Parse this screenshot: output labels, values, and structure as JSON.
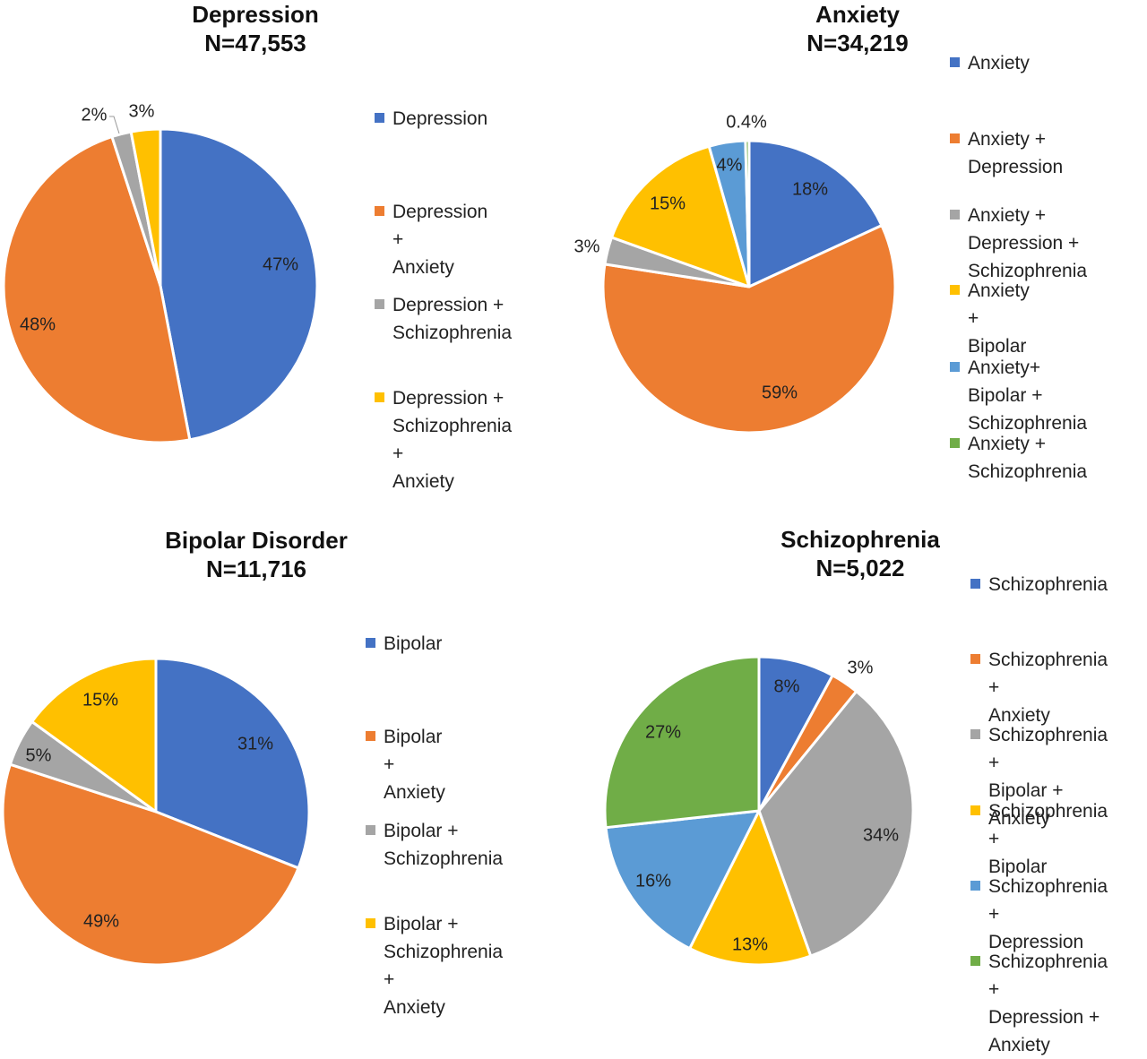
{
  "colors": {
    "blue": "#4472C4",
    "orange": "#ED7D31",
    "gray": "#A5A5A5",
    "yellow": "#FFC000",
    "lightblue": "#5B9BD5",
    "green": "#70AD47"
  },
  "chart_data": [
    {
      "type": "pie",
      "title": "Depression",
      "subtitle": "N=47,553",
      "legend_position": "right",
      "slices": [
        {
          "label": "Depression",
          "value": 47,
          "data_label": "47%",
          "color": "#4472C4"
        },
        {
          "label": "Depression + Anxiety",
          "value": 48,
          "data_label": "48%",
          "color": "#ED7D31"
        },
        {
          "label": "Depression + Schizophrenia",
          "value": 2,
          "data_label": "2%",
          "color": "#A5A5A5"
        },
        {
          "label": "Depression + Schizophrenia + Anxiety",
          "value": 3,
          "data_label": "3%",
          "color": "#FFC000"
        }
      ],
      "legend_lines": [
        [
          "Depression"
        ],
        [
          "Depression +",
          "Anxiety"
        ],
        [
          "Depression +",
          "Schizophrenia"
        ],
        [
          "Depression +",
          "Schizophrenia +",
          "Anxiety"
        ]
      ]
    },
    {
      "type": "pie",
      "title": "Anxiety",
      "subtitle": "N=34,219",
      "legend_position": "right",
      "slices": [
        {
          "label": "Anxiety",
          "value": 18,
          "data_label": "18%",
          "color": "#4472C4"
        },
        {
          "label": "Anxiety + Depression",
          "value": 59,
          "data_label": "59%",
          "color": "#ED7D31"
        },
        {
          "label": "Anxiety + Depression + Schizophrenia",
          "value": 3,
          "data_label": "3%",
          "color": "#A5A5A5"
        },
        {
          "label": "Anxiety + Bipolar",
          "value": 15,
          "data_label": "15%",
          "color": "#FFC000"
        },
        {
          "label": "Anxiety+ Bipolar + Schizophrenia",
          "value": 4,
          "data_label": "4%",
          "color": "#5B9BD5"
        },
        {
          "label": "Anxiety + Schizophrenia",
          "value": 0.4,
          "data_label": "0.4%",
          "color": "#70AD47"
        }
      ],
      "legend_lines": [
        [
          "Anxiety"
        ],
        [
          "Anxiety +",
          "Depression"
        ],
        [
          "Anxiety +",
          "Depression +",
          "Schizophrenia"
        ],
        [
          "Anxiety + Bipolar"
        ],
        [
          "Anxiety+ Bipolar +",
          "Schizophrenia"
        ],
        [
          "Anxiety +",
          "Schizophrenia"
        ]
      ]
    },
    {
      "type": "pie",
      "title": "Bipolar Disorder",
      "subtitle": "N=11,716",
      "legend_position": "right",
      "slices": [
        {
          "label": "Bipolar",
          "value": 31,
          "data_label": "31%",
          "color": "#4472C4"
        },
        {
          "label": "Bipolar + Anxiety",
          "value": 49,
          "data_label": "49%",
          "color": "#ED7D31"
        },
        {
          "label": "Bipolar + Schizophrenia",
          "value": 5,
          "data_label": "5%",
          "color": "#A5A5A5"
        },
        {
          "label": "Bipolar + Schizophrenia + Anxiety",
          "value": 15,
          "data_label": "15%",
          "color": "#FFC000"
        }
      ],
      "legend_lines": [
        [
          "Bipolar"
        ],
        [
          "Bipolar + Anxiety"
        ],
        [
          "Bipolar +",
          "Schizophrenia"
        ],
        [
          "Bipolar +",
          "Schizophrenia +",
          "Anxiety"
        ]
      ]
    },
    {
      "type": "pie",
      "title": "Schizophrenia",
      "subtitle": "N=5,022",
      "legend_position": "right",
      "slices": [
        {
          "label": "Schizophrenia",
          "value": 8,
          "data_label": "8%",
          "color": "#4472C4"
        },
        {
          "label": "Schizophrenia + Anxiety",
          "value": 3,
          "data_label": "3%",
          "color": "#ED7D31"
        },
        {
          "label": "Schizophrenia + Bipolar + Anxiety",
          "value": 34,
          "data_label": "34%",
          "color": "#A5A5A5"
        },
        {
          "label": "Schizophrenia + Bipolar",
          "value": 13,
          "data_label": "13%",
          "color": "#FFC000"
        },
        {
          "label": "Schizophrenia + Depression",
          "value": 16,
          "data_label": "16%",
          "color": "#5B9BD5"
        },
        {
          "label": "Schizophrenia + Depression + Anxiety",
          "value": 27,
          "data_label": "27%",
          "color": "#70AD47"
        }
      ],
      "legend_lines": [
        [
          "Schizophrenia"
        ],
        [
          "Schizophrenia +",
          "Anxiety"
        ],
        [
          "Schizophrenia +",
          "Bipolar + Anxiety"
        ],
        [
          "Schizophrenia +",
          "Bipolar"
        ],
        [
          "Schizophrenia +",
          "Depression"
        ],
        [
          "Schizophrenia +",
          "Depression +",
          "Anxiety"
        ]
      ]
    }
  ]
}
